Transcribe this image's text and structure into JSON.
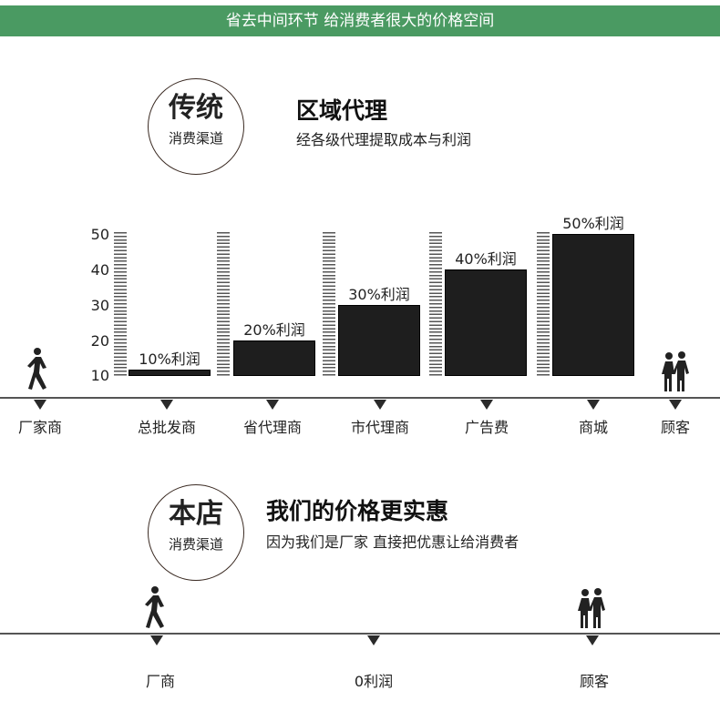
{
  "banner": "省去中间环节 给消费者很大的价格空间",
  "traditional": {
    "circle_title": "传统",
    "circle_sub": "消费渠道",
    "title": "区域代理",
    "subtitle": "经各级代理提取成本与利润"
  },
  "chart_data": {
    "type": "bar",
    "categories": [
      "总批发商",
      "省代理商",
      "市代理商",
      "广告费",
      "商城"
    ],
    "values": [
      10,
      20,
      30,
      40,
      50
    ],
    "data_labels": [
      "10%利润",
      "20%利润",
      "30%利润",
      "40%利润",
      "50%利润"
    ],
    "ylim": [
      10,
      50
    ],
    "yticks": [
      "10",
      "20",
      "30",
      "40",
      "50"
    ],
    "bar_color": "#1e1e1e"
  },
  "timeline1": {
    "start": "厂家商",
    "end": "顾客"
  },
  "ours": {
    "circle_title": "本店",
    "circle_sub": "消费渠道",
    "title": "我们的价格更实惠",
    "subtitle": "因为我们是厂家 直接把优惠让给消费者"
  },
  "timeline2": {
    "labels": [
      "厂商",
      "0利润",
      "顾客"
    ]
  },
  "colors": {
    "banner": "#4a9a62"
  },
  "icons": [
    "walking-person-icon",
    "family-icon"
  ]
}
